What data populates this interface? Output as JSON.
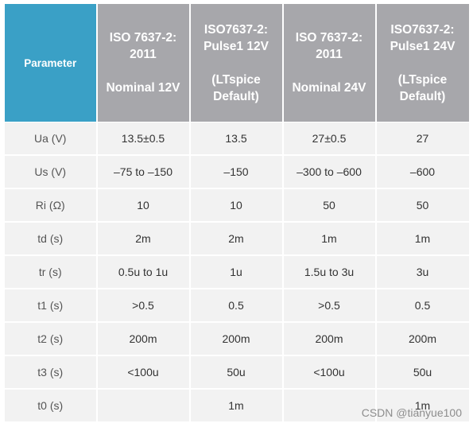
{
  "header": {
    "parameter": "Parameter",
    "col1": [
      "ISO 7637-2:",
      "2011",
      "",
      "Nominal 12V"
    ],
    "col2": [
      "ISO7637-2:",
      "Pulse1 12V",
      "",
      "(LTspice",
      "Default)"
    ],
    "col3": [
      "ISO 7637-2:",
      "2011",
      "",
      "Nominal 24V"
    ],
    "col4": [
      "ISO7637-2:",
      "Pulse1 24V",
      "",
      "(LTspice",
      "Default)"
    ]
  },
  "rows": [
    {
      "param": "Ua (V)",
      "v1": "13.5±0.5",
      "v2": "13.5",
      "v3": "27±0.5",
      "v4": "27"
    },
    {
      "param": "Us (V)",
      "v1": "–75 to –150",
      "v2": "–150",
      "v3": "–300 to –600",
      "v4": "–600"
    },
    {
      "param": "Ri (Ω)",
      "v1": "10",
      "v2": "10",
      "v3": "50",
      "v4": "50"
    },
    {
      "param": "td (s)",
      "v1": "2m",
      "v2": "2m",
      "v3": "1m",
      "v4": "1m"
    },
    {
      "param": "tr (s)",
      "v1": "0.5u to 1u",
      "v2": "1u",
      "v3": "1.5u to 3u",
      "v4": "3u"
    },
    {
      "param": "t1 (s)",
      "v1": ">0.5",
      "v2": "0.5",
      "v3": ">0.5",
      "v4": "0.5"
    },
    {
      "param": "t2 (s)",
      "v1": "200m",
      "v2": "200m",
      "v3": "200m",
      "v4": "200m"
    },
    {
      "param": "t3 (s)",
      "v1": "<100u",
      "v2": "50u",
      "v3": "<100u",
      "v4": "50u"
    },
    {
      "param": "t0 (s)",
      "v1": "",
      "v2": "1m",
      "v3": "",
      "v4": "1m"
    }
  ],
  "watermark": "CSDN @tianyue100"
}
